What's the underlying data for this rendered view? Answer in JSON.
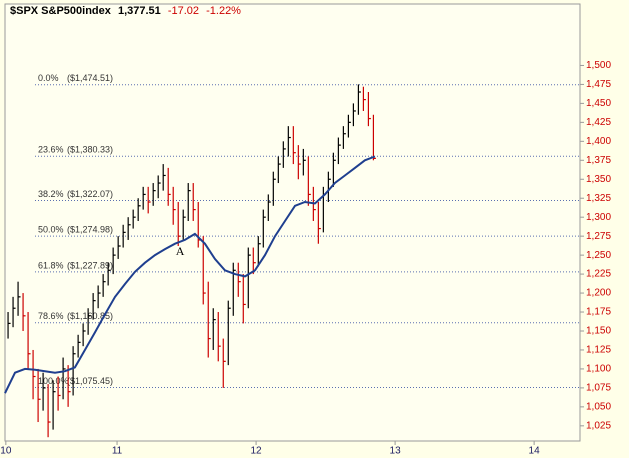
{
  "chart_data": {
    "type": "ohlc",
    "header": {
      "symbol": "$SPX S&P500index",
      "last": "1,377.51",
      "change": "-17.02",
      "change_pct": "-1.22%"
    },
    "xlim": [
      10.194,
      14.33
    ],
    "xticks": [
      {
        "value": 10.2,
        "label": "10"
      },
      11,
      12,
      13,
      14
    ],
    "ylim": [
      1005,
      1581
    ],
    "yticks": [
      {
        "value": 1025,
        "label": "1,025"
      },
      {
        "value": 1050,
        "label": "1,050"
      },
      {
        "value": 1075,
        "label": "1,075"
      },
      {
        "value": 1100,
        "label": "1,100"
      },
      {
        "value": 1125,
        "label": "1,125"
      },
      {
        "value": 1150,
        "label": "1,150"
      },
      {
        "value": 1175,
        "label": "1,175"
      },
      {
        "value": 1200,
        "label": "1,200"
      },
      {
        "value": 1225,
        "label": "1,225"
      },
      {
        "value": 1250,
        "label": "1,250"
      },
      {
        "value": 1275,
        "label": "1,275"
      },
      {
        "value": 1300,
        "label": "1,300"
      },
      {
        "value": 1325,
        "label": "1,325"
      },
      {
        "value": 1350,
        "label": "1,350"
      },
      {
        "value": 1375,
        "label": "1,375"
      },
      {
        "value": 1400,
        "label": "1,400"
      },
      {
        "value": 1425,
        "label": "1,425"
      },
      {
        "value": 1450,
        "label": "1,450"
      },
      {
        "value": 1475,
        "label": "1,475"
      },
      {
        "value": 1500,
        "label": "1,500"
      }
    ],
    "up_color": "#000000",
    "down_color": "#cc0000",
    "ma_color": "#1f3f8f",
    "fib_color": "#5a6fb0",
    "bars": {
      "x": [
        10.216,
        10.252,
        10.288,
        10.324,
        10.36,
        10.396,
        10.432,
        10.468,
        10.504,
        10.54,
        10.576,
        10.612,
        10.648,
        10.684,
        10.72,
        10.756,
        10.792,
        10.828,
        10.864,
        10.9,
        10.936,
        10.972,
        11.008,
        11.044,
        11.08,
        11.116,
        11.152,
        11.188,
        11.224,
        11.26,
        11.296,
        11.332,
        11.368,
        11.404,
        11.44,
        11.476,
        11.512,
        11.548,
        11.584,
        11.62,
        11.656,
        11.692,
        11.728,
        11.764,
        11.8,
        11.836,
        11.872,
        11.908,
        11.944,
        11.98,
        12.016,
        12.052,
        12.088,
        12.124,
        12.16,
        12.196,
        12.232,
        12.268,
        12.304,
        12.34,
        12.376,
        12.412,
        12.448,
        12.484,
        12.52,
        12.556,
        12.592,
        12.628,
        12.664,
        12.7,
        12.736,
        12.772,
        12.808,
        12.844
      ],
      "high": [
        1175,
        1195,
        1215,
        1200,
        1175,
        1125,
        1100,
        1095,
        1080,
        1085,
        1090,
        1115,
        1105,
        1130,
        1145,
        1160,
        1180,
        1200,
        1210,
        1225,
        1240,
        1260,
        1275,
        1290,
        1300,
        1310,
        1325,
        1340,
        1340,
        1345,
        1355,
        1370,
        1365,
        1340,
        1320,
        1310,
        1345,
        1345,
        1320,
        1275,
        1215,
        1180,
        1175,
        1140,
        1190,
        1240,
        1240,
        1225,
        1260,
        1260,
        1275,
        1310,
        1330,
        1360,
        1380,
        1400,
        1420,
        1420,
        1395,
        1390,
        1380,
        1340,
        1320,
        1340,
        1360,
        1385,
        1405,
        1420,
        1435,
        1450,
        1475,
        1472,
        1465,
        1435
      ],
      "low": [
        1140,
        1155,
        1170,
        1150,
        1100,
        1060,
        1030,
        1045,
        1010,
        1020,
        1045,
        1060,
        1050,
        1065,
        1115,
        1130,
        1145,
        1165,
        1180,
        1195,
        1210,
        1225,
        1245,
        1260,
        1270,
        1285,
        1295,
        1310,
        1305,
        1315,
        1325,
        1335,
        1315,
        1290,
        1262,
        1270,
        1295,
        1295,
        1260,
        1185,
        1115,
        1125,
        1110,
        1075,
        1105,
        1170,
        1195,
        1160,
        1180,
        1225,
        1235,
        1260,
        1295,
        1315,
        1345,
        1365,
        1380,
        1370,
        1350,
        1355,
        1315,
        1295,
        1265,
        1280,
        1320,
        1340,
        1370,
        1390,
        1405,
        1420,
        1435,
        1440,
        1420,
        1375
      ],
      "close": [
        1160,
        1180,
        1195,
        1170,
        1120,
        1090,
        1060,
        1075,
        1030,
        1070,
        1065,
        1100,
        1070,
        1120,
        1135,
        1150,
        1170,
        1190,
        1200,
        1215,
        1230,
        1250,
        1262,
        1280,
        1290,
        1300,
        1315,
        1330,
        1320,
        1335,
        1345,
        1355,
        1330,
        1310,
        1275,
        1300,
        1335,
        1310,
        1270,
        1200,
        1140,
        1165,
        1130,
        1110,
        1180,
        1230,
        1215,
        1185,
        1250,
        1240,
        1265,
        1300,
        1320,
        1350,
        1370,
        1390,
        1405,
        1385,
        1370,
        1375,
        1330,
        1310,
        1285,
        1330,
        1350,
        1375,
        1395,
        1410,
        1425,
        1440,
        1465,
        1455,
        1430,
        1377.51
      ]
    },
    "moving_average": {
      "x": [
        10.194,
        10.266,
        10.338,
        10.41,
        10.482,
        10.554,
        10.625,
        10.697,
        10.769,
        10.841,
        10.913,
        10.985,
        11.057,
        11.129,
        11.201,
        11.273,
        11.345,
        11.417,
        11.488,
        11.56,
        11.632,
        11.704,
        11.776,
        11.848,
        11.92,
        11.992,
        12.064,
        12.136,
        12.208,
        12.28,
        12.351,
        12.423,
        12.495,
        12.567,
        12.639,
        12.711,
        12.783,
        12.855
      ],
      "values": [
        1068,
        1095,
        1100,
        1099,
        1097,
        1095,
        1097,
        1102,
        1125,
        1148,
        1172,
        1195,
        1212,
        1228,
        1240,
        1250,
        1258,
        1265,
        1270,
        1278,
        1265,
        1245,
        1230,
        1225,
        1222,
        1230,
        1250,
        1275,
        1295,
        1315,
        1320,
        1318,
        1330,
        1345,
        1355,
        1365,
        1375,
        1380
      ]
    },
    "fib_levels": [
      {
        "label": "0.0%",
        "price_label": "($1,474.51)",
        "value": 1474.51
      },
      {
        "label": "23.6%",
        "price_label": "($1,380.33)",
        "value": 1380.33
      },
      {
        "label": "38.2%",
        "price_label": "($1,322.07)",
        "value": 1322.07
      },
      {
        "label": "50.0%",
        "price_label": "($1,274.98)",
        "value": 1274.98
      },
      {
        "label": "61.8%",
        "price_label": "($1,227.89)",
        "value": 1227.89
      },
      {
        "label": "78.6%",
        "price_label": "($1,160.85)",
        "value": 1160.85
      },
      {
        "label": "100.0%",
        "price_label": "($1,075.45)",
        "value": 1075.45
      }
    ],
    "annotations": [
      {
        "text": "A",
        "x": 11.453,
        "y": 1254
      }
    ]
  }
}
